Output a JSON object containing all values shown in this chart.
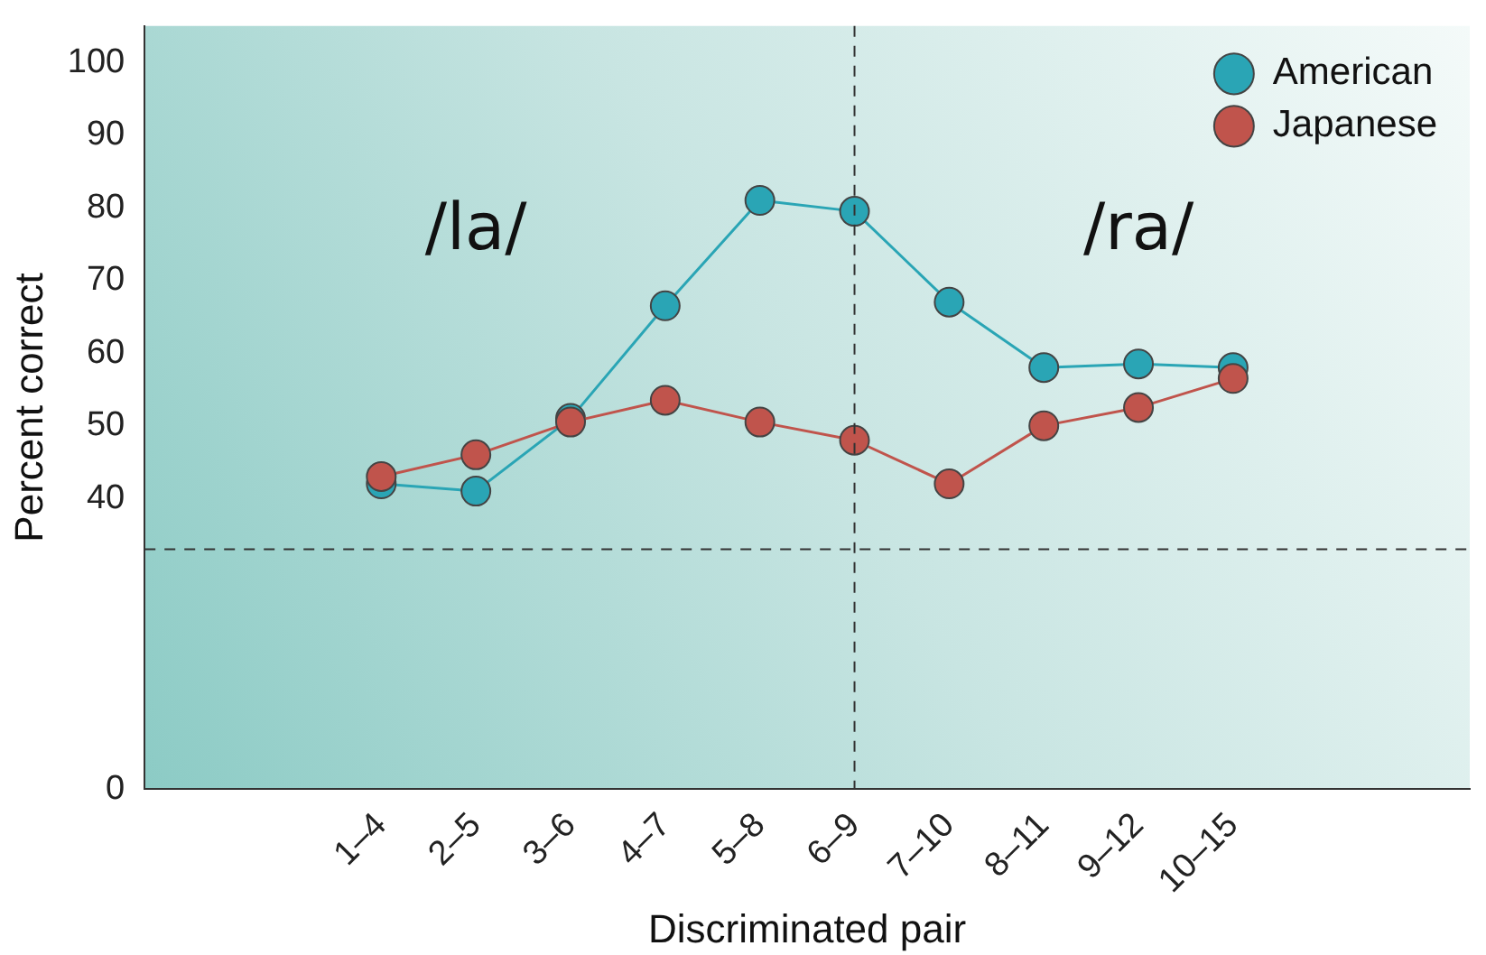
{
  "chart_data": {
    "type": "line",
    "xlabel": "Discriminated pair",
    "ylabel": "Percent correct",
    "categories": [
      null,
      null,
      "1–4",
      "2–5",
      "3–6",
      "4–7",
      "5–8",
      "6–9",
      "7–10",
      "8–11",
      "9–12",
      "10–15",
      null,
      null
    ],
    "series": [
      {
        "name": "American",
        "color": "#2aa5b5",
        "values": [
          null,
          null,
          42,
          41,
          51,
          66.5,
          81,
          79.5,
          67,
          58,
          58.5,
          58,
          null,
          null
        ]
      },
      {
        "name": "Japanese",
        "color": "#c0544c",
        "values": [
          null,
          null,
          43,
          46,
          50.5,
          53.5,
          50.5,
          48,
          42,
          50,
          52.5,
          56.5,
          null,
          null
        ]
      }
    ],
    "ylim": [
      0,
      105
    ],
    "yticks": [
      0,
      40,
      50,
      60,
      70,
      80,
      90,
      100
    ],
    "ref_lines": [
      {
        "axis": "x",
        "value": "6–9",
        "line_style": "dashed",
        "color": "#333333"
      },
      {
        "axis": "y",
        "value": 33,
        "line_style": "dashed",
        "color": "#333333"
      }
    ],
    "annotations": [
      "/la/",
      "/ra/"
    ],
    "grid": false,
    "legend": "top right",
    "marker": "circle",
    "line_style": "solid"
  }
}
